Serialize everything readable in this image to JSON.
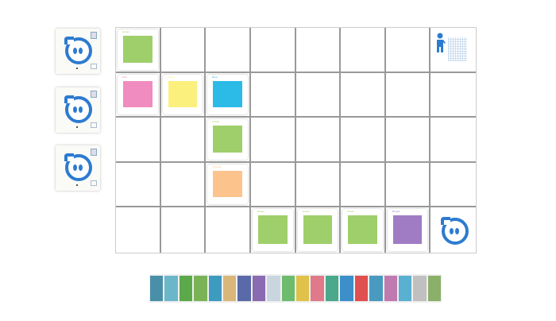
{
  "side_cards": [
    {
      "icon": "sphero-icon"
    },
    {
      "icon": "sphero-icon"
    },
    {
      "icon": "sphero-icon"
    }
  ],
  "board": {
    "rows": 5,
    "cols": 8,
    "tiles": [
      {
        "row": 0,
        "col": 0,
        "type": "color",
        "label": "Green",
        "color": "#9fcf6a"
      },
      {
        "row": 0,
        "col": 7,
        "type": "goal",
        "icon": "person-icon"
      },
      {
        "row": 1,
        "col": 0,
        "type": "color",
        "label": "Pink",
        "color": "#f08cbf"
      },
      {
        "row": 1,
        "col": 1,
        "type": "color",
        "label": "Yellow",
        "color": "#fbf07e"
      },
      {
        "row": 1,
        "col": 2,
        "type": "color",
        "label": "Blue",
        "color": "#2bbbe6"
      },
      {
        "row": 2,
        "col": 2,
        "type": "color",
        "label": "Green",
        "color": "#9fcf6a"
      },
      {
        "row": 3,
        "col": 2,
        "type": "color",
        "label": "Orange",
        "color": "#fdc38c"
      },
      {
        "row": 4,
        "col": 3,
        "type": "color",
        "label": "Green",
        "color": "#9fcf6a"
      },
      {
        "row": 4,
        "col": 4,
        "type": "color",
        "label": "Green",
        "color": "#9fcf6a"
      },
      {
        "row": 4,
        "col": 5,
        "type": "color",
        "label": "Green",
        "color": "#9fcf6a"
      },
      {
        "row": 4,
        "col": 6,
        "type": "color",
        "label": "Purple",
        "color": "#a07cc4"
      },
      {
        "row": 4,
        "col": 7,
        "type": "robot",
        "icon": "sphero-icon"
      }
    ]
  },
  "strip": {
    "colors": [
      "#4a8fa8",
      "#6bb7c9",
      "#5ca94b",
      "#7ab356",
      "#3e9bc0",
      "#d9b77a",
      "#5a6aa8",
      "#8a6ab0",
      "#c9d6e0",
      "#6dbb6d",
      "#e0c24a",
      "#e07a8a",
      "#4aa98a",
      "#3c8fc9",
      "#e05050",
      "#4a9ac0",
      "#c07ab0",
      "#5ab0d0",
      "#c0c0c0",
      "#8ab06a"
    ]
  }
}
